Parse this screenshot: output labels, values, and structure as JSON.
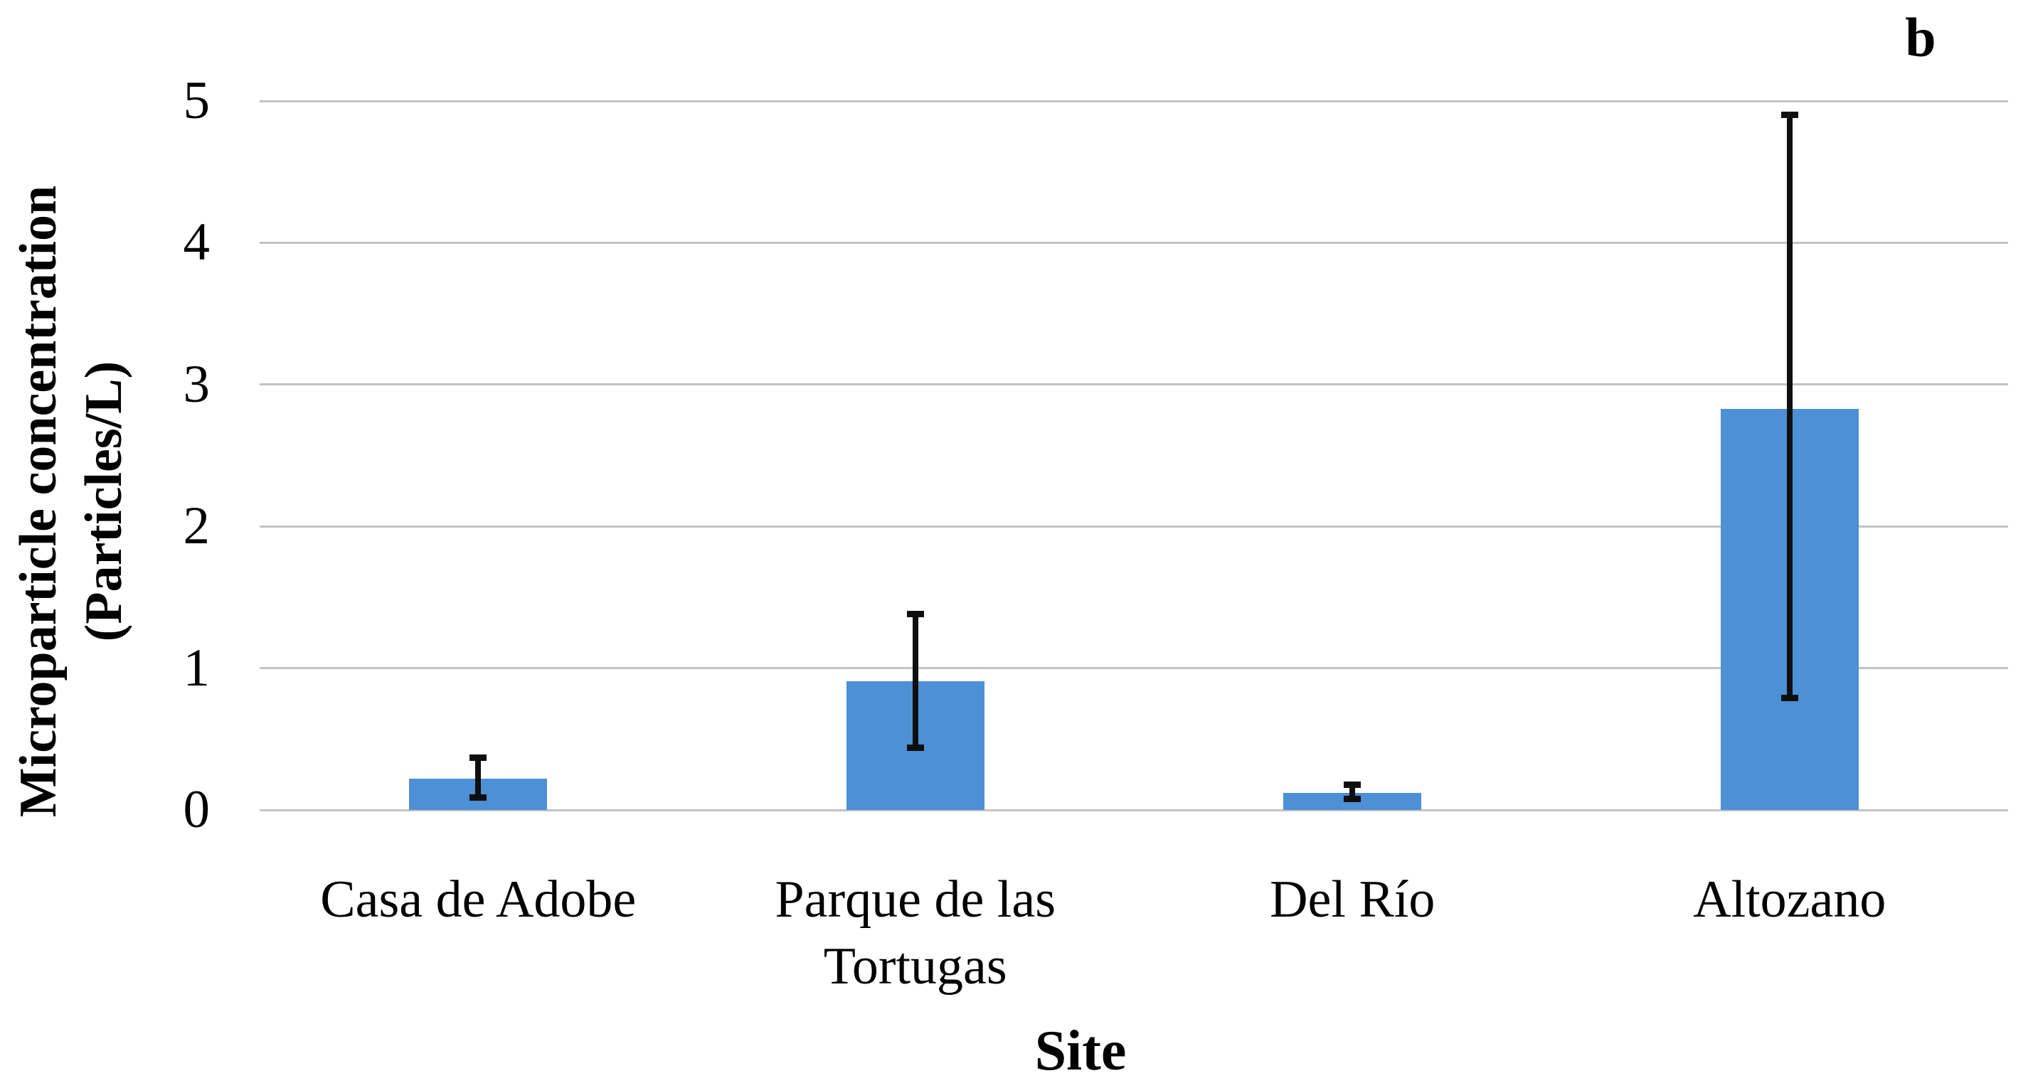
{
  "figure": {
    "panel_label": "b",
    "background_color": "#FFFFFF"
  },
  "y_axis": {
    "title_line1": "Microparticle concentration",
    "title_line2": "(Particles/L)",
    "tick_labels": [
      "0",
      "1",
      "2",
      "3",
      "4",
      "5"
    ]
  },
  "x_axis": {
    "title": "Site"
  },
  "chart_data": {
    "type": "bar",
    "title": "",
    "xlabel": "Site",
    "ylabel": "Microparticle concentration (Particles/L)",
    "categories": [
      "Casa de Adobe",
      "Parque de las Tortugas",
      "Del Río",
      "Altozano"
    ],
    "category_lines": [
      [
        "Casa de Adobe"
      ],
      [
        "Parque de las",
        "Tortugas"
      ],
      [
        "Del Río"
      ],
      [
        "Altozano"
      ]
    ],
    "values": [
      0.22,
      0.91,
      0.12,
      2.83
    ],
    "error_low": [
      0.09,
      0.44,
      0.08,
      0.79
    ],
    "error_high": [
      0.37,
      1.38,
      0.18,
      4.9
    ],
    "ylim": [
      0,
      5
    ],
    "yticks": [
      0,
      1,
      2,
      3,
      4,
      5
    ],
    "grid": true,
    "legend": "none",
    "panel_label": "b",
    "colors": {
      "bar": "#4D90D5",
      "gridline": "#C3C3C3",
      "error_bar": "#0F0F0F",
      "text": "#000000",
      "background": "#FFFFFF"
    }
  }
}
